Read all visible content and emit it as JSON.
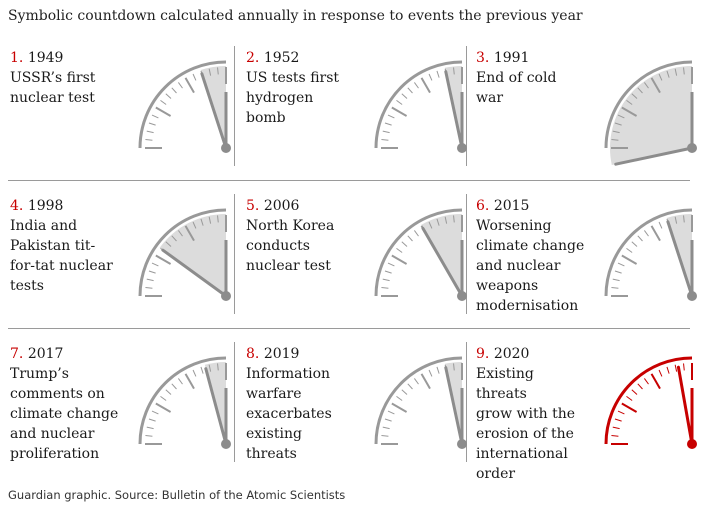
{
  "title": "Symbolic countdown calculated annually in response to events the previous year",
  "footer": "Guardian graphic. Source: Bulletin of the Atomic Scientists",
  "colors": {
    "normal": "#999999",
    "highlight": "#c70000",
    "fill": "#dcdcdc",
    "rule": "#9a9a9a"
  },
  "panels": [
    {
      "num": "1.",
      "year": "1949",
      "caption": "USSR’s first nuclear test",
      "lines": [
        "USSR’s first",
        "nuclear test"
      ],
      "minutes_to_midnight": 3,
      "highlight": false
    },
    {
      "num": "2.",
      "year": "1952",
      "caption": "US tests first hydrogen bomb",
      "lines": [
        "US tests first",
        "hydrogen",
        "bomb"
      ],
      "minutes_to_midnight": 2,
      "highlight": false
    },
    {
      "num": "3.",
      "year": "1991",
      "caption": "End of cold war",
      "lines": [
        "End of cold",
        "war"
      ],
      "minutes_to_midnight": 17,
      "highlight": false
    },
    {
      "num": "4.",
      "year": "1998",
      "caption": "India and Pakistan tit-for-tat nuclear tests",
      "lines": [
        "India and",
        "Pakistan tit-",
        "for-tat nuclear",
        "tests"
      ],
      "minutes_to_midnight": 9,
      "highlight": false
    },
    {
      "num": "5.",
      "year": "2006",
      "caption": "North Korea conducts nuclear test",
      "lines": [
        "North Korea",
        "conducts",
        "nuclear test"
      ],
      "minutes_to_midnight": 5,
      "highlight": false
    },
    {
      "num": "6.",
      "year": "2015",
      "caption": "Worsening climate change and nuclear weapons modernisation",
      "lines": [
        "Worsening",
        "climate change",
        "and nuclear",
        "weapons",
        "modernisation"
      ],
      "minutes_to_midnight": 3,
      "highlight": false
    },
    {
      "num": "7.",
      "year": "2017",
      "caption": "Trump’s comments on climate change and nuclear proliferation",
      "lines": [
        "Trump’s",
        "comments on",
        "climate change",
        "and nuclear",
        "proliferation"
      ],
      "minutes_to_midnight": 2.5,
      "highlight": false
    },
    {
      "num": "8.",
      "year": "2019",
      "caption": "Information warfare exacerbates existing threats",
      "lines": [
        "Information",
        "warfare",
        "exacerbates",
        "existing",
        "threats"
      ],
      "minutes_to_midnight": 2,
      "highlight": false
    },
    {
      "num": "9.",
      "year": "2020",
      "caption": "Existing threats grow with the erosion of the international order",
      "lines": [
        "Existing threats",
        "grow with the",
        "erosion of the",
        "international",
        "order"
      ],
      "minutes_to_midnight": 1.67,
      "highlight": true
    }
  ]
}
